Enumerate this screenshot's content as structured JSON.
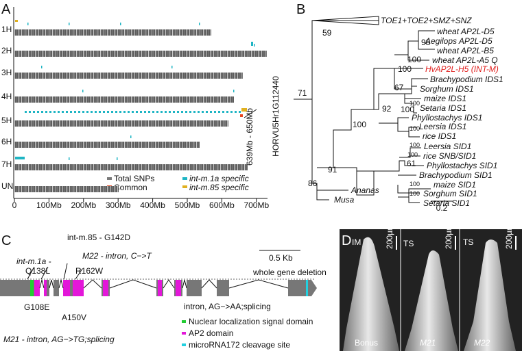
{
  "panel_a": {
    "label": "A",
    "chromosomes": [
      "1H",
      "2H",
      "3H",
      "4H",
      "5H",
      "6H",
      "7H",
      "UN"
    ],
    "x_ticks": [
      "0",
      "100Mb",
      "200Mb",
      "300Mb",
      "400Mb",
      "500Mb",
      "600Mb",
      "700Mb"
    ],
    "legend": [
      "Total SNPs",
      "Common",
      "int-m.1a specific",
      "int-m.85 specific"
    ],
    "region": "639Mb - 650Mb",
    "gene": "HORVU5Hr1G112440"
  },
  "panel_b": {
    "label": "B",
    "leaves": [
      "TOE1+TOE2+SMZ+SNZ",
      "wheat AP2L-D5",
      "Aegilops AP2L-D5",
      "wheat  AP2L-B5",
      "wheat  AP2L-A5 Q",
      "HvAP2L-H5 (INT-M)",
      "Brachypodium IDS1",
      "Sorghum IDS1",
      "maize  IDS1",
      "Setaria IDS1",
      "Phyllostachys IDS1",
      "Leersia IDS1",
      "rice  IDS1",
      "Leersia SID1",
      "rice  SNB/SID1",
      "Phyllostachys SID1",
      "Brachypodium SID1",
      "maize  SID1",
      "Sorghum SID1",
      "Setaria SID1",
      "Ananas",
      "Musa"
    ],
    "support": [
      "59",
      "71",
      "98",
      "100",
      "100",
      "67",
      "100",
      "100",
      "100",
      "100",
      "100",
      "91",
      "86",
      "100",
      "61",
      "92",
      "100",
      "100"
    ],
    "scale": "0.2"
  },
  "panel_c": {
    "label": "C",
    "annotations": [
      "int-m.85 - G142D",
      "int-m.1a -",
      "Q138L",
      "M22 - intron, C−>T",
      "R162W",
      "0.5 Kb",
      "whole gene deletion",
      "G108E",
      "A150V",
      "intron, AG−>AA;splicing",
      "M21 - intron, AG−>TG;splicing"
    ],
    "legend": [
      "Nuclear localization signal domain",
      "AP2 domain",
      "microRNA172 cleavage site"
    ]
  },
  "panel_d": {
    "label": "D",
    "labels": [
      "IM",
      "TS",
      "TS"
    ],
    "scale_bars": [
      "200µm",
      "200µm",
      "200µm"
    ],
    "captions": [
      "Bonus",
      "M21",
      "M22"
    ]
  }
}
